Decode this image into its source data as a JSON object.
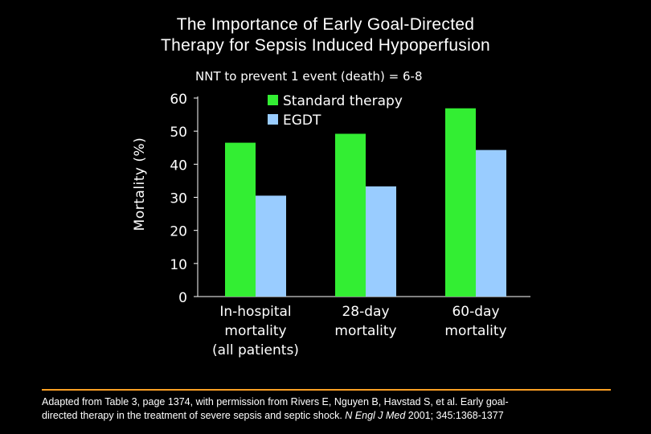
{
  "title": {
    "line1": "The Importance of Early Goal-Directed",
    "line2": "Therapy for Sepsis Induced Hypoperfusion"
  },
  "subtitle": "NNT to prevent 1 event (death) = 6-8",
  "chart_data": {
    "type": "bar",
    "title": "The Importance of Early Goal-Directed Therapy for Sepsis Induced Hypoperfusion",
    "subtitle": "NNT to prevent 1 event (death) = 6-8",
    "xlabel": "",
    "ylabel": "Mortality (%)",
    "ylim": [
      0,
      60
    ],
    "yticks": [
      0,
      10,
      20,
      30,
      40,
      50,
      60
    ],
    "categories": [
      [
        "In-hospital",
        "mortality",
        "(all patients)"
      ],
      [
        "28-day",
        "mortality"
      ],
      [
        "60-day",
        "mortality"
      ]
    ],
    "series": [
      {
        "name": "Standard therapy",
        "color": "#33ee33",
        "values": [
          46.5,
          49.2,
          56.9
        ]
      },
      {
        "name": "EGDT",
        "color": "#99ccff",
        "values": [
          30.5,
          33.3,
          44.3
        ]
      }
    ],
    "legend_position": "top"
  },
  "citation": {
    "line1": "Adapted from Table 3, page 1374, with permission from Rivers E, Nguyen B, Havstad S, et al. Early goal-",
    "line2_plain": "directed therapy in the treatment of severe sepsis and septic shock. ",
    "journal": "N Engl J Med",
    "line2_tail": " 2001; 345:1368-1377"
  },
  "colors": {
    "background": "#000000",
    "text": "#ffffff",
    "divider": "#ffa023"
  }
}
